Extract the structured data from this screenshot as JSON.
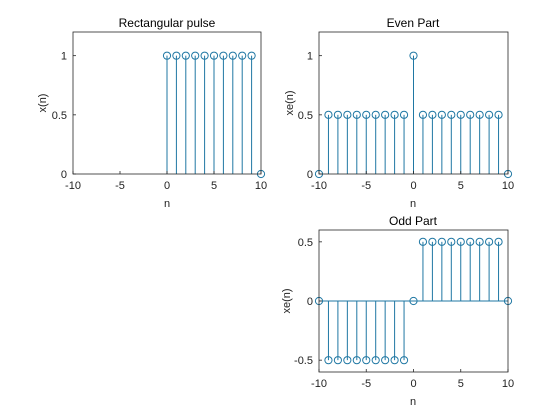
{
  "chart_data": [
    {
      "type": "stem",
      "title": "Rectangular pulse",
      "xlabel": "n",
      "ylabel": "x(n)",
      "xlim": [
        -10,
        10
      ],
      "ylim": [
        0,
        1.2
      ],
      "xticks": [
        -10,
        -5,
        0,
        5,
        10
      ],
      "yticks": [
        0,
        0.5,
        1
      ],
      "x": [
        0,
        1,
        2,
        3,
        4,
        5,
        6,
        7,
        8,
        9,
        10
      ],
      "y": [
        1,
        1,
        1,
        1,
        1,
        1,
        1,
        1,
        1,
        1,
        0
      ],
      "color": "#1f77a3"
    },
    {
      "type": "stem",
      "title": "Even Part",
      "xlabel": "n",
      "ylabel": "xe(n)",
      "xlim": [
        -10,
        10
      ],
      "ylim": [
        0,
        1.2
      ],
      "xticks": [
        -10,
        -5,
        0,
        5,
        10
      ],
      "yticks": [
        0,
        0.5,
        1
      ],
      "x": [
        -10,
        -9,
        -8,
        -7,
        -6,
        -5,
        -4,
        -3,
        -2,
        -1,
        0,
        1,
        2,
        3,
        4,
        5,
        6,
        7,
        8,
        9,
        10
      ],
      "y": [
        0,
        0.5,
        0.5,
        0.5,
        0.5,
        0.5,
        0.5,
        0.5,
        0.5,
        0.5,
        1,
        0.5,
        0.5,
        0.5,
        0.5,
        0.5,
        0.5,
        0.5,
        0.5,
        0.5,
        0
      ],
      "color": "#1f77a3"
    },
    {
      "type": "stem",
      "title": "Odd Part",
      "xlabel": "n",
      "ylabel": "xe(n)",
      "xlim": [
        -10,
        10
      ],
      "ylim": [
        -0.6,
        0.6
      ],
      "xticks": [
        -10,
        -5,
        0,
        5,
        10
      ],
      "yticks": [
        -0.5,
        0,
        0.5
      ],
      "x": [
        -10,
        -9,
        -8,
        -7,
        -6,
        -5,
        -4,
        -3,
        -2,
        -1,
        0,
        1,
        2,
        3,
        4,
        5,
        6,
        7,
        8,
        9,
        10
      ],
      "y": [
        0,
        -0.5,
        -0.5,
        -0.5,
        -0.5,
        -0.5,
        -0.5,
        -0.5,
        -0.5,
        -0.5,
        0,
        0.5,
        0.5,
        0.5,
        0.5,
        0.5,
        0.5,
        0.5,
        0.5,
        0.5,
        0
      ],
      "color": "#1f77a3"
    }
  ]
}
